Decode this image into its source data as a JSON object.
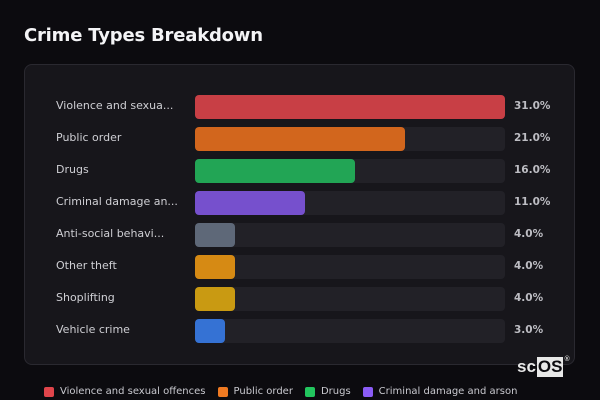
{
  "header": {
    "title": "Crime Types Breakdown"
  },
  "rows": [
    {
      "label": "Violence and sexua...",
      "value": 31.0,
      "value_label": "31.0%",
      "color": "#c83f45"
    },
    {
      "label": "Public order",
      "value": 21.0,
      "value_label": "21.0%",
      "color": "#d2661d"
    },
    {
      "label": "Drugs",
      "value": 16.0,
      "value_label": "16.0%",
      "color": "#22a555"
    },
    {
      "label": "Criminal damage an...",
      "value": 11.0,
      "value_label": "11.0%",
      "color": "#7650cd"
    },
    {
      "label": "Anti-social behavi...",
      "value": 4.0,
      "value_label": "4.0%",
      "color": "#5e6878"
    },
    {
      "label": "Other theft",
      "value": 4.0,
      "value_label": "4.0%",
      "color": "#d68a14"
    },
    {
      "label": "Shoplifting",
      "value": 4.0,
      "value_label": "4.0%",
      "color": "#c99a12"
    },
    {
      "label": "Vehicle crime",
      "value": 3.0,
      "value_label": "3.0%",
      "color": "#3572d4"
    }
  ],
  "legend": [
    {
      "label": "Violence and sexual offences",
      "color": "#e0454b"
    },
    {
      "label": "Public order",
      "color": "#f07a22"
    },
    {
      "label": "Drugs",
      "color": "#22c55e"
    },
    {
      "label": "Criminal damage and arson",
      "color": "#8b5cf6"
    }
  ],
  "logo": {
    "prefix": "sc",
    "highlight": "OS",
    "mark": "®"
  },
  "chart_data": {
    "type": "bar",
    "orientation": "horizontal",
    "title": "Crime Types Breakdown",
    "categories": [
      "Violence and sexual offences",
      "Public order",
      "Drugs",
      "Criminal damage and arson",
      "Anti-social behaviour",
      "Other theft",
      "Shoplifting",
      "Vehicle crime"
    ],
    "display_labels": [
      "Violence and sexua...",
      "Public order",
      "Drugs",
      "Criminal damage an...",
      "Anti-social behavi...",
      "Other theft",
      "Shoplifting",
      "Vehicle crime"
    ],
    "values": [
      31.0,
      21.0,
      16.0,
      11.0,
      4.0,
      4.0,
      4.0,
      3.0
    ],
    "unit": "%",
    "colors": [
      "#c83f45",
      "#d2661d",
      "#22a555",
      "#7650cd",
      "#5e6878",
      "#d68a14",
      "#c99a12",
      "#3572d4"
    ],
    "xlabel": "",
    "ylabel": "",
    "xlim": [
      0,
      31
    ],
    "grid": false,
    "legend_position": "bottom",
    "legend_entries": [
      "Violence and sexual offences",
      "Public order",
      "Drugs",
      "Criminal damage and arson"
    ]
  }
}
